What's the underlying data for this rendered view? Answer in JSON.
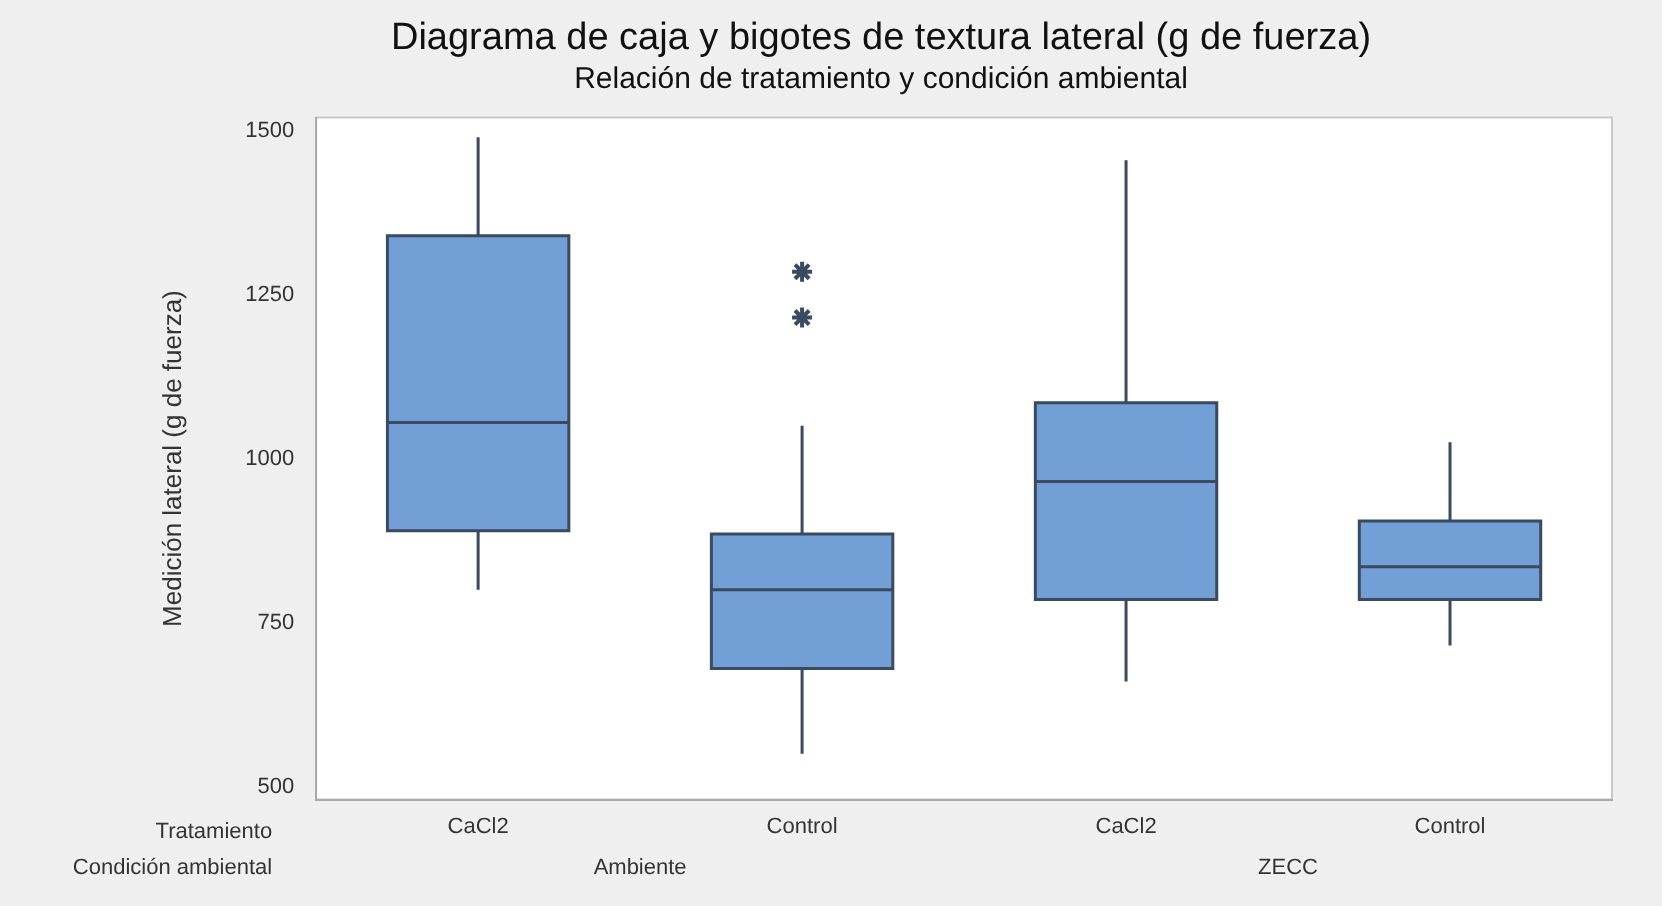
{
  "chart_data": {
    "type": "box",
    "title": "Diagrama de caja y bigotes de textura lateral (g de fuerza)",
    "subtitle": "Relación de tratamiento y condición ambiental",
    "ylabel": "Medición lateral (g de fuerza)",
    "categories": [
      "CaCl2",
      "Control",
      "CaCl2",
      "Control"
    ],
    "boxes": [
      {
        "low": 800,
        "q1": 890,
        "median": 1055,
        "q3": 1340,
        "high": 1490
      },
      {
        "low": 550,
        "q1": 680,
        "median": 800,
        "q3": 885,
        "high": 1050,
        "outliers": [
          1215,
          1285
        ]
      },
      {
        "low": 660,
        "q1": 785,
        "median": 965,
        "q3": 1085,
        "high": 1455
      },
      {
        "low": 715,
        "q1": 785,
        "median": 835,
        "q3": 905,
        "high": 1025
      }
    ],
    "color": "#729fd6",
    "marker": "star",
    "ylim": [
      480,
      1520
    ],
    "yticks": [
      500,
      750,
      1000,
      1250,
      1500
    ],
    "grid": false,
    "legend": false,
    "annotations": [
      "Tratamiento",
      "Condición ambiental",
      "Ambiente",
      "ZECC"
    ]
  }
}
